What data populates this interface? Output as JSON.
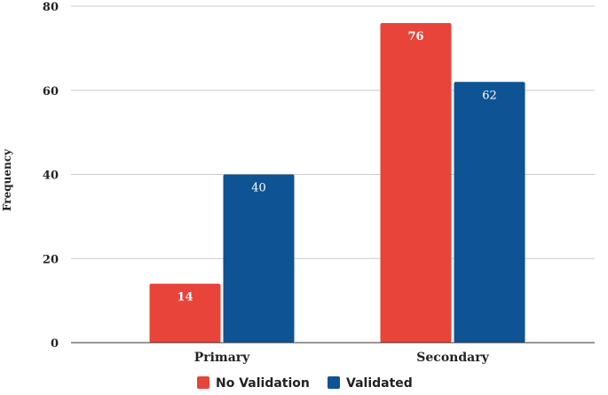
{
  "chart_data": {
    "type": "bar",
    "title": "",
    "xlabel": "",
    "ylabel": "Frequency",
    "categories": [
      "Primary",
      "Secondary"
    ],
    "ylim": [
      0,
      80
    ],
    "yticks": [
      0,
      20,
      40,
      60,
      80
    ],
    "grid": true,
    "legend_position": "bottom",
    "series": [
      {
        "name": "No Validation",
        "color": "#e8443a",
        "values": [
          14,
          76
        ],
        "labels": [
          "14",
          "76"
        ]
      },
      {
        "name": "Validated",
        "color": "#0e5393",
        "values": [
          40,
          62
        ],
        "labels": [
          "40",
          "62"
        ]
      }
    ]
  }
}
